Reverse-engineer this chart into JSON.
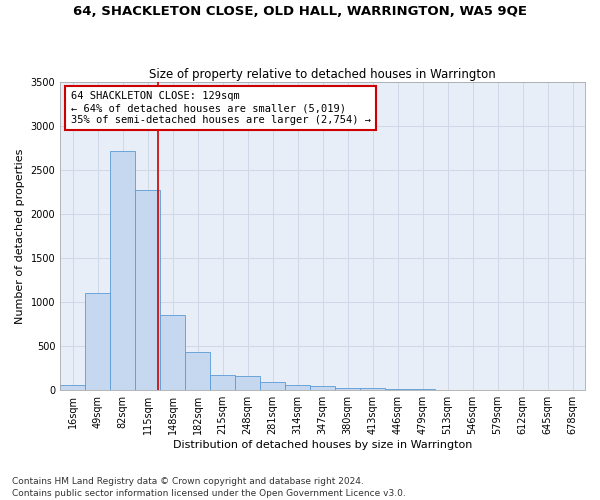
{
  "title": "64, SHACKLETON CLOSE, OLD HALL, WARRINGTON, WA5 9QE",
  "subtitle": "Size of property relative to detached houses in Warrington",
  "xlabel": "Distribution of detached houses by size in Warrington",
  "ylabel": "Number of detached properties",
  "bin_labels": [
    "16sqm",
    "49sqm",
    "82sqm",
    "115sqm",
    "148sqm",
    "182sqm",
    "215sqm",
    "248sqm",
    "281sqm",
    "314sqm",
    "347sqm",
    "380sqm",
    "413sqm",
    "446sqm",
    "479sqm",
    "513sqm",
    "546sqm",
    "579sqm",
    "612sqm",
    "645sqm",
    "678sqm"
  ],
  "bar_values": [
    55,
    1110,
    2720,
    2280,
    860,
    430,
    170,
    160,
    90,
    60,
    45,
    30,
    25,
    15,
    10,
    5,
    3,
    2,
    2,
    1,
    0
  ],
  "bar_color": "#c5d8f0",
  "bar_edge_color": "#5a9bd5",
  "vline_position": 3.42,
  "vline_color": "#cc0000",
  "annotation_text": "64 SHACKLETON CLOSE: 129sqm\n← 64% of detached houses are smaller (5,019)\n35% of semi-detached houses are larger (2,754) →",
  "annotation_box_color": "#ffffff",
  "annotation_box_edge": "#cc0000",
  "ylim": [
    0,
    3500
  ],
  "yticks": [
    0,
    500,
    1000,
    1500,
    2000,
    2500,
    3000,
    3500
  ],
  "grid_color": "#d0d8e8",
  "bg_color": "#e8eef8",
  "footnote": "Contains HM Land Registry data © Crown copyright and database right 2024.\nContains public sector information licensed under the Open Government Licence v3.0.",
  "title_fontsize": 9.5,
  "subtitle_fontsize": 8.5,
  "xlabel_fontsize": 8,
  "ylabel_fontsize": 8,
  "tick_fontsize": 7,
  "annotation_fontsize": 7.5,
  "footnote_fontsize": 6.5
}
